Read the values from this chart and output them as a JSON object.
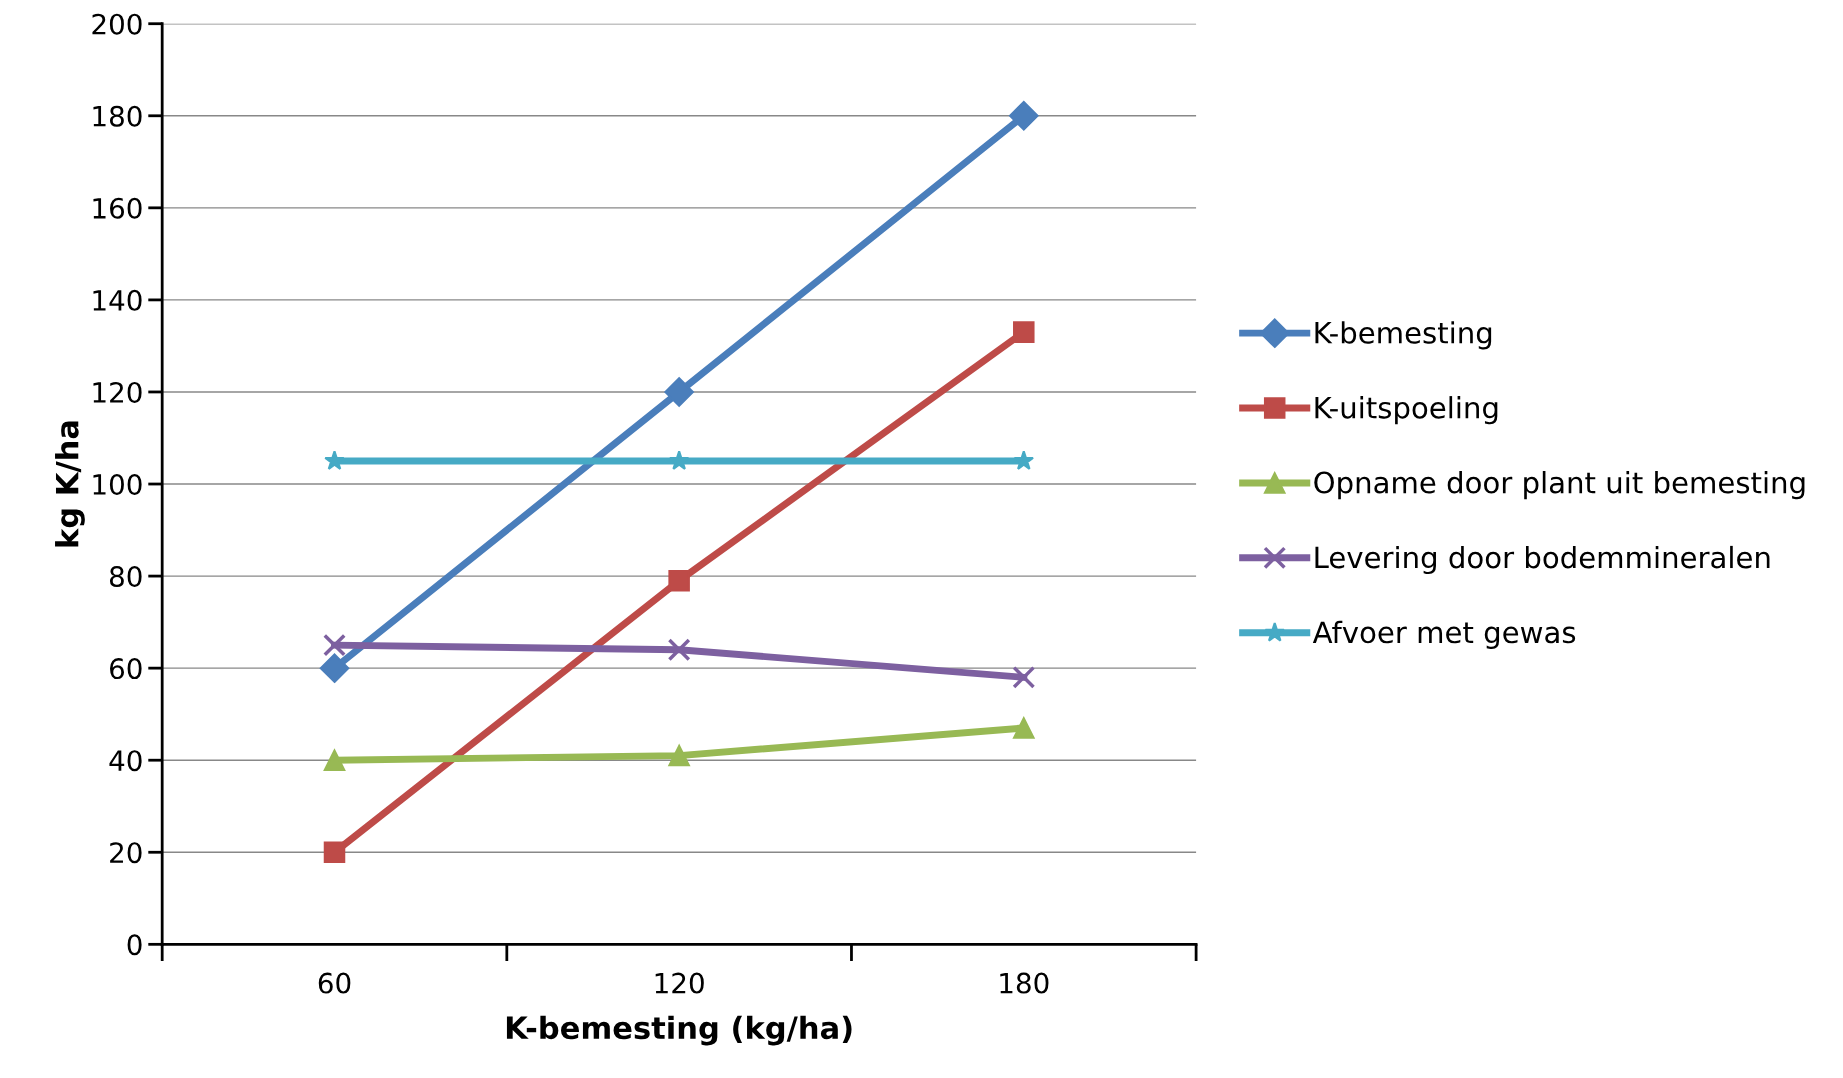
{
  "chart_data": {
    "type": "line",
    "xlabel": "K-bemesting (kg/ha)",
    "ylabel": "kg K/ha",
    "categories": [
      "60",
      "120",
      "180"
    ],
    "series": [
      {
        "name": "K-bemesting",
        "color": "#4a7ebb",
        "marker": "diamond",
        "values": [
          60,
          120,
          180
        ]
      },
      {
        "name": "K-uitspoeling",
        "color": "#be4b48",
        "marker": "square",
        "values": [
          20,
          79,
          133
        ]
      },
      {
        "name": "Opname door plant uit bemesting",
        "color": "#98b954",
        "marker": "triangle",
        "values": [
          40,
          41,
          47
        ]
      },
      {
        "name": "Levering door bodemmineralen",
        "color": "#7d60a0",
        "marker": "cross",
        "values": [
          65,
          64,
          58
        ]
      },
      {
        "name": "Afvoer met gewas",
        "color": "#46aac5",
        "marker": "star",
        "values": [
          105,
          105,
          105
        ]
      }
    ],
    "ylim": [
      0,
      200
    ],
    "yticks": [
      0,
      20,
      40,
      60,
      80,
      100,
      120,
      140,
      160,
      180,
      200
    ],
    "grid": "y",
    "legend": "right",
    "line_style": "solid"
  }
}
